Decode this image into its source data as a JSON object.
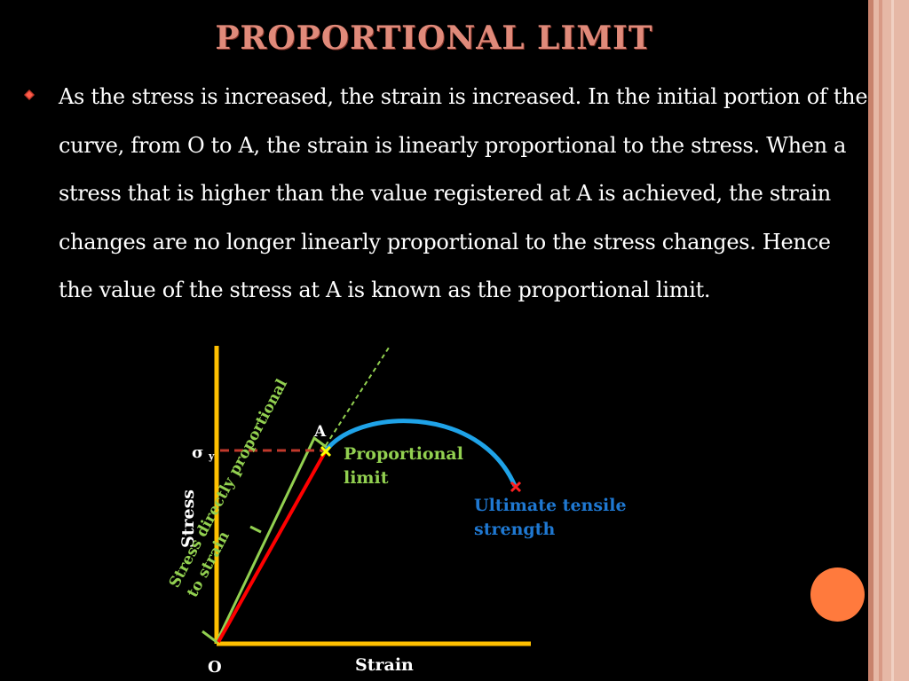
{
  "slide": {
    "title": "PROPORTIONAL LIMIT",
    "body": "As the stress is increased, the strain is increased. In the initial portion of the curve, from O to A, the strain is linearly proportional to the stress. When a stress that is higher than the value registered at A is achieved, the strain changes are no longer linearly proportional to the stress changes. Hence the value of the stress at A is known as the proportional limit."
  },
  "diagram": {
    "x_axis_label": "Strain",
    "y_axis_label": "Stress",
    "origin_label": "O",
    "point_a_label": "A",
    "sigma_symbol": "σ",
    "sigma_subscript": "y",
    "proportional_label_line1": "Proportional",
    "proportional_label_line2": "limit",
    "uts_label_line1": "Ultimate tensile",
    "uts_label_line2": "strength",
    "slope_label_line1": "Stress directly proportional",
    "slope_label_line2": "to strain"
  },
  "colors": {
    "title": "#e08a7a",
    "axes": "#ffc000",
    "linear_line": "#ff0000",
    "curve": "#1fa3e8",
    "proportional_label": "#92d050",
    "uts_label": "#1f78d1",
    "sigma_dashed": "#c0392b",
    "marker_a": "#ffff00",
    "marker_uts": "#ff2020",
    "accent_circle": "#ff7a3d",
    "frame": "#e6b8a6"
  },
  "icons": {
    "bullet": "red-diamond-bullet-icon",
    "accent": "orange-circle-icon"
  }
}
